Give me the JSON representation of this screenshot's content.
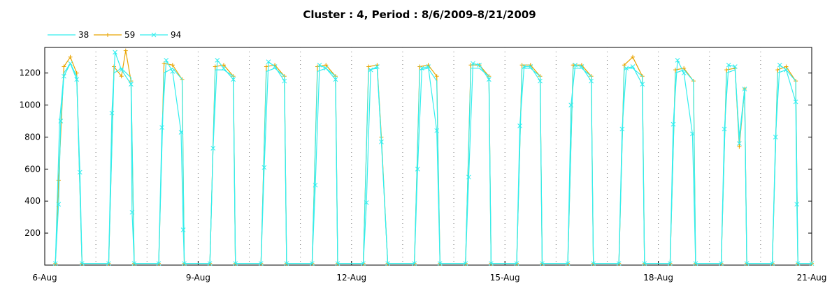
{
  "chart_data": {
    "type": "line",
    "title": "Cluster : 4, Period : 8/6/2009-8/21/2009",
    "xlabel": "",
    "ylabel": "",
    "x_range": [
      "2009-08-06",
      "2009-08-21"
    ],
    "x_tick_labels": [
      "6-Aug",
      "9-Aug",
      "12-Aug",
      "15-Aug",
      "18-Aug",
      "21-Aug"
    ],
    "y_tick_labels": [
      "200",
      "400",
      "600",
      "800",
      "1000",
      "1200"
    ],
    "ylim": [
      0,
      1360
    ],
    "grid": "dotted vertical lines at each day",
    "legend_position": "top-left",
    "series": [
      {
        "name": "38",
        "color": "#33eeee",
        "marker": "none",
        "values": [
          [
            "2009-08-06 05:00",
            10
          ],
          [
            "2009-08-06 07:00",
            900
          ],
          [
            "2009-08-06 09:00",
            1200
          ],
          [
            "2009-08-06 12:00",
            1260
          ],
          [
            "2009-08-06 15:00",
            1180
          ],
          [
            "2009-08-06 17:30",
            10
          ],
          [
            "2009-08-07 06:00",
            10
          ],
          [
            "2009-08-07 08:30",
            1200
          ],
          [
            "2009-08-07 12:00",
            1230
          ],
          [
            "2009-08-07 16:30",
            1170
          ],
          [
            "2009-08-07 18:00",
            10
          ],
          [
            "2009-08-08 05:30",
            10
          ],
          [
            "2009-08-08 08:00",
            1200
          ],
          [
            "2009-08-08 12:00",
            1230
          ],
          [
            "2009-08-08 16:30",
            1160
          ],
          [
            "2009-08-08 17:30",
            10
          ],
          [
            "2009-08-09 05:30",
            10
          ],
          [
            "2009-08-09 08:00",
            1220
          ],
          [
            "2009-08-09 12:00",
            1220
          ],
          [
            "2009-08-09 16:30",
            1180
          ],
          [
            "2009-08-09 17:30",
            10
          ],
          [
            "2009-08-10 05:30",
            10
          ],
          [
            "2009-08-10 08:00",
            1210
          ],
          [
            "2009-08-10 12:00",
            1230
          ],
          [
            "2009-08-10 16:30",
            1180
          ],
          [
            "2009-08-10 17:30",
            10
          ],
          [
            "2009-08-11 05:30",
            10
          ],
          [
            "2009-08-11 08:00",
            1210
          ],
          [
            "2009-08-11 12:00",
            1230
          ],
          [
            "2009-08-11 16:30",
            1180
          ],
          [
            "2009-08-11 17:30",
            10
          ],
          [
            "2009-08-12 05:30",
            10
          ],
          [
            "2009-08-12 08:00",
            1220
          ],
          [
            "2009-08-12 12:00",
            1230
          ],
          [
            "2009-08-12 14:00",
            780
          ],
          [
            "2009-08-12 17:00",
            10
          ],
          [
            "2009-08-13 05:30",
            10
          ],
          [
            "2009-08-13 08:00",
            1220
          ],
          [
            "2009-08-13 12:00",
            1230
          ],
          [
            "2009-08-13 16:00",
            1150
          ],
          [
            "2009-08-13 17:30",
            10
          ],
          [
            "2009-08-14 05:30",
            10
          ],
          [
            "2009-08-14 08:00",
            1230
          ],
          [
            "2009-08-14 12:00",
            1230
          ],
          [
            "2009-08-14 16:30",
            1180
          ],
          [
            "2009-08-14 17:30",
            10
          ],
          [
            "2009-08-15 05:30",
            10
          ],
          [
            "2009-08-15 08:00",
            1230
          ],
          [
            "2009-08-15 12:00",
            1230
          ],
          [
            "2009-08-15 16:30",
            1180
          ],
          [
            "2009-08-15 17:30",
            10
          ],
          [
            "2009-08-16 05:30",
            10
          ],
          [
            "2009-08-16 08:00",
            1230
          ],
          [
            "2009-08-16 12:00",
            1230
          ],
          [
            "2009-08-16 16:30",
            1180
          ],
          [
            "2009-08-16 17:30",
            10
          ],
          [
            "2009-08-17 05:30",
            10
          ],
          [
            "2009-08-17 08:00",
            1230
          ],
          [
            "2009-08-17 12:00",
            1230
          ],
          [
            "2009-08-17 16:30",
            1180
          ],
          [
            "2009-08-17 17:30",
            10
          ],
          [
            "2009-08-18 05:30",
            10
          ],
          [
            "2009-08-18 08:00",
            1200
          ],
          [
            "2009-08-18 12:00",
            1220
          ],
          [
            "2009-08-18 16:30",
            1150
          ],
          [
            "2009-08-18 17:30",
            10
          ],
          [
            "2009-08-19 05:30",
            10
          ],
          [
            "2009-08-19 08:00",
            1200
          ],
          [
            "2009-08-19 12:00",
            1220
          ],
          [
            "2009-08-19 14:00",
            800
          ],
          [
            "2009-08-19 16:30",
            1100
          ],
          [
            "2009-08-19 17:30",
            10
          ],
          [
            "2009-08-20 05:30",
            10
          ],
          [
            "2009-08-20 08:00",
            1200
          ],
          [
            "2009-08-20 12:00",
            1220
          ],
          [
            "2009-08-20 16:30",
            1150
          ],
          [
            "2009-08-20 17:30",
            10
          ],
          [
            "2009-08-21 00:00",
            10
          ]
        ]
      },
      {
        "name": "59",
        "color": "#e8a400",
        "marker": "plus",
        "values": [
          [
            "2009-08-06 05:00",
            10
          ],
          [
            "2009-08-06 06:30",
            530
          ],
          [
            "2009-08-06 09:00",
            1240
          ],
          [
            "2009-08-06 12:00",
            1300
          ],
          [
            "2009-08-06 15:00",
            1200
          ],
          [
            "2009-08-06 17:30",
            10
          ],
          [
            "2009-08-07 06:00",
            10
          ],
          [
            "2009-08-07 08:30",
            1240
          ],
          [
            "2009-08-07 12:00",
            1180
          ],
          [
            "2009-08-07 14:00",
            1340
          ],
          [
            "2009-08-07 16:30",
            1150
          ],
          [
            "2009-08-07 18:00",
            10
          ],
          [
            "2009-08-08 05:30",
            10
          ],
          [
            "2009-08-08 08:00",
            1260
          ],
          [
            "2009-08-08 12:00",
            1250
          ],
          [
            "2009-08-08 16:30",
            1160
          ],
          [
            "2009-08-08 17:30",
            10
          ],
          [
            "2009-08-09 05:30",
            10
          ],
          [
            "2009-08-09 08:00",
            1240
          ],
          [
            "2009-08-09 12:00",
            1250
          ],
          [
            "2009-08-09 16:30",
            1180
          ],
          [
            "2009-08-09 17:30",
            10
          ],
          [
            "2009-08-10 05:30",
            10
          ],
          [
            "2009-08-10 08:00",
            1240
          ],
          [
            "2009-08-10 12:00",
            1250
          ],
          [
            "2009-08-10 16:30",
            1180
          ],
          [
            "2009-08-10 17:30",
            10
          ],
          [
            "2009-08-11 05:30",
            10
          ],
          [
            "2009-08-11 08:00",
            1240
          ],
          [
            "2009-08-11 12:00",
            1250
          ],
          [
            "2009-08-11 16:30",
            1180
          ],
          [
            "2009-08-11 17:30",
            10
          ],
          [
            "2009-08-12 05:30",
            10
          ],
          [
            "2009-08-12 08:00",
            1240
          ],
          [
            "2009-08-12 12:00",
            1250
          ],
          [
            "2009-08-12 14:00",
            800
          ],
          [
            "2009-08-12 17:00",
            10
          ],
          [
            "2009-08-13 05:30",
            10
          ],
          [
            "2009-08-13 08:00",
            1240
          ],
          [
            "2009-08-13 12:00",
            1250
          ],
          [
            "2009-08-13 16:00",
            1180
          ],
          [
            "2009-08-13 17:30",
            10
          ],
          [
            "2009-08-14 05:30",
            10
          ],
          [
            "2009-08-14 08:00",
            1250
          ],
          [
            "2009-08-14 12:00",
            1250
          ],
          [
            "2009-08-14 16:30",
            1180
          ],
          [
            "2009-08-14 17:30",
            10
          ],
          [
            "2009-08-15 05:30",
            10
          ],
          [
            "2009-08-15 08:00",
            1250
          ],
          [
            "2009-08-15 12:00",
            1250
          ],
          [
            "2009-08-15 16:30",
            1180
          ],
          [
            "2009-08-15 17:30",
            10
          ],
          [
            "2009-08-16 05:30",
            10
          ],
          [
            "2009-08-16 08:00",
            1250
          ],
          [
            "2009-08-16 12:00",
            1250
          ],
          [
            "2009-08-16 16:30",
            1180
          ],
          [
            "2009-08-16 17:30",
            10
          ],
          [
            "2009-08-17 05:30",
            10
          ],
          [
            "2009-08-17 08:00",
            1250
          ],
          [
            "2009-08-17 12:00",
            1300
          ],
          [
            "2009-08-17 16:30",
            1180
          ],
          [
            "2009-08-17 17:30",
            10
          ],
          [
            "2009-08-18 05:30",
            10
          ],
          [
            "2009-08-18 08:00",
            1220
          ],
          [
            "2009-08-18 12:00",
            1230
          ],
          [
            "2009-08-18 16:30",
            1150
          ],
          [
            "2009-08-18 17:30",
            10
          ],
          [
            "2009-08-19 05:30",
            10
          ],
          [
            "2009-08-19 08:00",
            1220
          ],
          [
            "2009-08-19 12:00",
            1230
          ],
          [
            "2009-08-19 14:00",
            740
          ],
          [
            "2009-08-19 16:30",
            1100
          ],
          [
            "2009-08-19 17:30",
            10
          ],
          [
            "2009-08-20 05:30",
            10
          ],
          [
            "2009-08-20 08:00",
            1220
          ],
          [
            "2009-08-20 12:00",
            1240
          ],
          [
            "2009-08-20 16:30",
            1150
          ],
          [
            "2009-08-20 17:30",
            10
          ],
          [
            "2009-08-21 00:00",
            10
          ]
        ]
      },
      {
        "name": "94",
        "color": "#33eeee",
        "marker": "x",
        "values": [
          [
            "2009-08-06 05:00",
            10
          ],
          [
            "2009-08-06 06:30",
            380
          ],
          [
            "2009-08-06 07:30",
            900
          ],
          [
            "2009-08-06 09:00",
            1180
          ],
          [
            "2009-08-06 12:00",
            1260
          ],
          [
            "2009-08-06 15:00",
            1160
          ],
          [
            "2009-08-06 16:30",
            580
          ],
          [
            "2009-08-06 17:30",
            10
          ],
          [
            "2009-08-07 06:00",
            10
          ],
          [
            "2009-08-07 07:30",
            950
          ],
          [
            "2009-08-07 09:00",
            1330
          ],
          [
            "2009-08-07 12:00",
            1220
          ],
          [
            "2009-08-07 16:30",
            1130
          ],
          [
            "2009-08-07 17:00",
            330
          ],
          [
            "2009-08-07 18:00",
            10
          ],
          [
            "2009-08-08 05:30",
            10
          ],
          [
            "2009-08-08 07:00",
            860
          ],
          [
            "2009-08-08 09:00",
            1280
          ],
          [
            "2009-08-08 12:00",
            1210
          ],
          [
            "2009-08-08 16:00",
            830
          ],
          [
            "2009-08-08 17:00",
            220
          ],
          [
            "2009-08-08 17:30",
            10
          ],
          [
            "2009-08-09 05:30",
            10
          ],
          [
            "2009-08-09 07:00",
            730
          ],
          [
            "2009-08-09 09:00",
            1280
          ],
          [
            "2009-08-09 12:00",
            1230
          ],
          [
            "2009-08-09 16:30",
            1160
          ],
          [
            "2009-08-09 17:30",
            10
          ],
          [
            "2009-08-10 05:30",
            10
          ],
          [
            "2009-08-10 07:00",
            610
          ],
          [
            "2009-08-10 09:00",
            1270
          ],
          [
            "2009-08-10 12:00",
            1240
          ],
          [
            "2009-08-10 16:30",
            1150
          ],
          [
            "2009-08-10 17:30",
            10
          ],
          [
            "2009-08-11 05:30",
            10
          ],
          [
            "2009-08-11 07:00",
            500
          ],
          [
            "2009-08-11 09:00",
            1250
          ],
          [
            "2009-08-11 12:00",
            1230
          ],
          [
            "2009-08-11 16:30",
            1160
          ],
          [
            "2009-08-11 17:30",
            10
          ],
          [
            "2009-08-12 05:30",
            10
          ],
          [
            "2009-08-12 07:00",
            390
          ],
          [
            "2009-08-12 09:00",
            1220
          ],
          [
            "2009-08-12 12:00",
            1240
          ],
          [
            "2009-08-12 14:00",
            770
          ],
          [
            "2009-08-12 17:00",
            10
          ],
          [
            "2009-08-13 05:30",
            10
          ],
          [
            "2009-08-13 07:00",
            600
          ],
          [
            "2009-08-13 09:00",
            1230
          ],
          [
            "2009-08-13 12:00",
            1240
          ],
          [
            "2009-08-13 16:00",
            840
          ],
          [
            "2009-08-13 17:30",
            10
          ],
          [
            "2009-08-14 05:30",
            10
          ],
          [
            "2009-08-14 07:00",
            550
          ],
          [
            "2009-08-14 09:00",
            1260
          ],
          [
            "2009-08-14 12:00",
            1250
          ],
          [
            "2009-08-14 16:30",
            1160
          ],
          [
            "2009-08-14 17:30",
            10
          ],
          [
            "2009-08-15 05:30",
            10
          ],
          [
            "2009-08-15 07:00",
            870
          ],
          [
            "2009-08-15 09:00",
            1240
          ],
          [
            "2009-08-15 12:00",
            1240
          ],
          [
            "2009-08-15 16:30",
            1150
          ],
          [
            "2009-08-15 17:30",
            10
          ],
          [
            "2009-08-16 05:30",
            10
          ],
          [
            "2009-08-16 07:00",
            1000
          ],
          [
            "2009-08-16 09:00",
            1250
          ],
          [
            "2009-08-16 12:00",
            1240
          ],
          [
            "2009-08-16 16:30",
            1150
          ],
          [
            "2009-08-16 17:30",
            10
          ],
          [
            "2009-08-17 05:30",
            10
          ],
          [
            "2009-08-17 07:00",
            850
          ],
          [
            "2009-08-17 09:00",
            1230
          ],
          [
            "2009-08-17 12:00",
            1240
          ],
          [
            "2009-08-17 16:30",
            1130
          ],
          [
            "2009-08-17 17:30",
            10
          ],
          [
            "2009-08-18 05:30",
            10
          ],
          [
            "2009-08-18 07:00",
            880
          ],
          [
            "2009-08-18 09:00",
            1280
          ],
          [
            "2009-08-18 12:00",
            1200
          ],
          [
            "2009-08-18 16:00",
            820
          ],
          [
            "2009-08-18 17:30",
            10
          ],
          [
            "2009-08-19 05:30",
            10
          ],
          [
            "2009-08-19 07:00",
            850
          ],
          [
            "2009-08-19 09:00",
            1250
          ],
          [
            "2009-08-19 12:00",
            1240
          ],
          [
            "2009-08-19 14:00",
            760
          ],
          [
            "2009-08-19 16:30",
            1100
          ],
          [
            "2009-08-19 17:30",
            10
          ],
          [
            "2009-08-20 05:30",
            10
          ],
          [
            "2009-08-20 07:00",
            800
          ],
          [
            "2009-08-20 09:00",
            1250
          ],
          [
            "2009-08-20 12:00",
            1220
          ],
          [
            "2009-08-20 16:30",
            1020
          ],
          [
            "2009-08-20 17:00",
            380
          ],
          [
            "2009-08-20 17:30",
            10
          ],
          [
            "2009-08-21 00:00",
            10
          ]
        ]
      }
    ]
  }
}
